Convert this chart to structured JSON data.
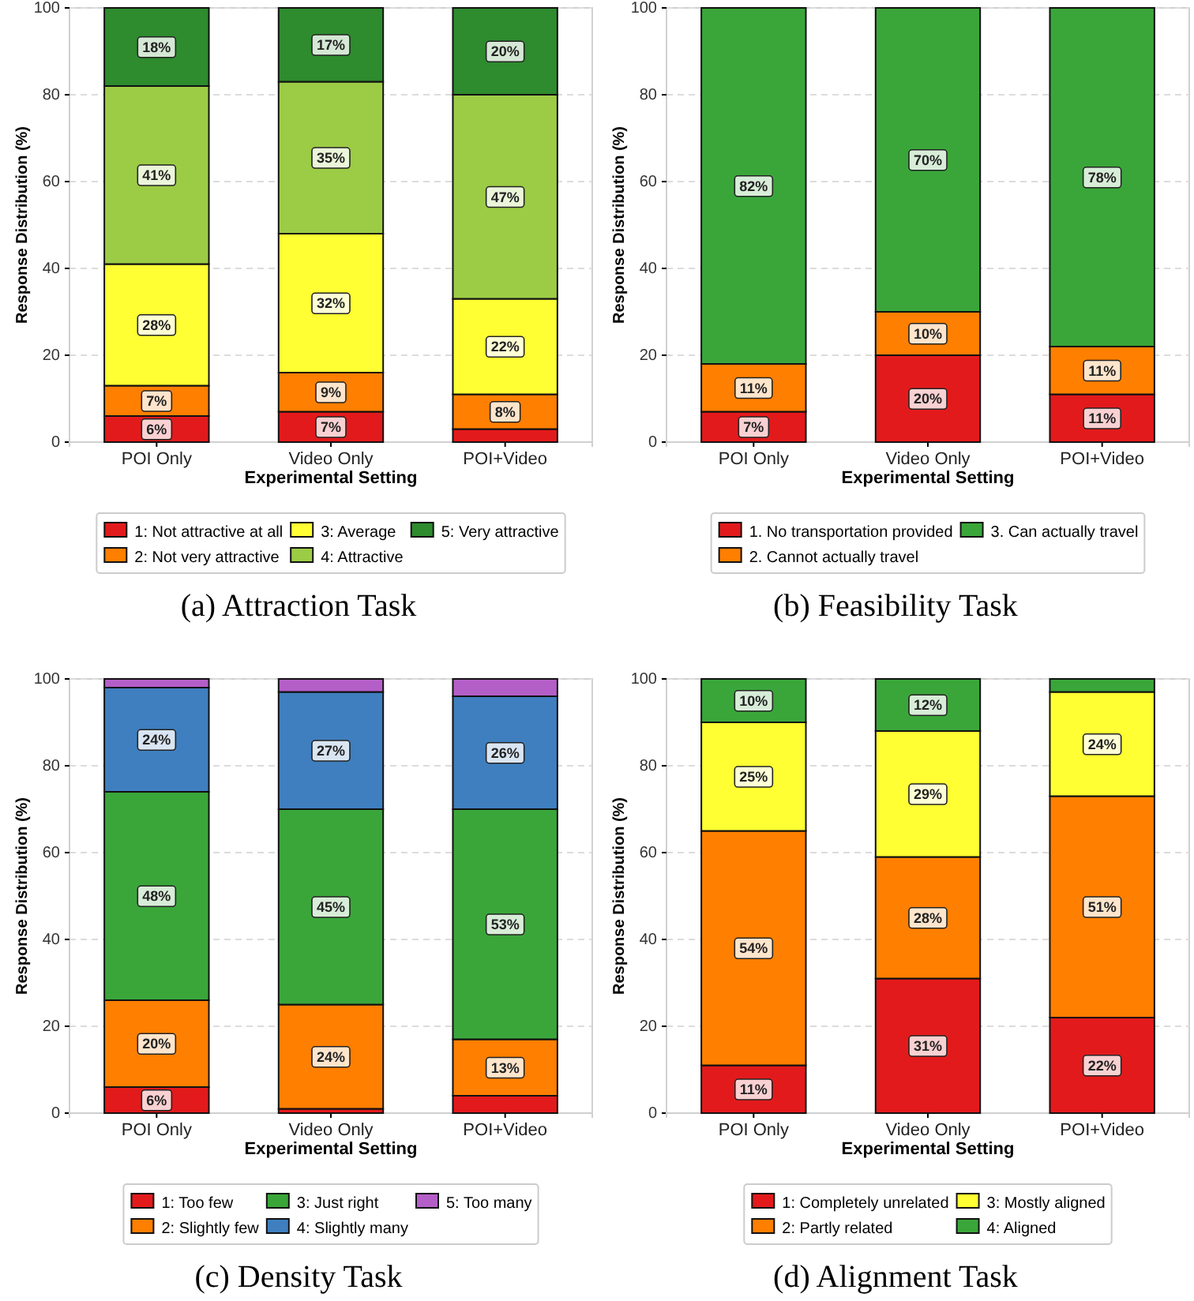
{
  "chart_data": [
    {
      "type": "bar",
      "stacked": true,
      "title": "(a) Attraction Task",
      "xlabel": "Experimental Setting",
      "ylabel": "Response Distribution (%)",
      "categories": [
        "POI Only",
        "Video Only",
        "POI+Video"
      ],
      "ylim": [
        0,
        100
      ],
      "yticks": [
        0,
        20,
        40,
        60,
        80,
        100
      ],
      "grid": "y",
      "legend": "bottom",
      "series": [
        {
          "name": "1: Not attractive at all",
          "color": "#e31a1c",
          "values": [
            6,
            7,
            3
          ],
          "value_labels": [
            "6%",
            "7%",
            null
          ]
        },
        {
          "name": "2: Not very attractive",
          "color": "#ff7f00",
          "values": [
            7,
            9,
            8
          ],
          "value_labels": [
            "7%",
            "9%",
            "8%"
          ]
        },
        {
          "name": "3: Average",
          "color": "#ffff33",
          "values": [
            28,
            32,
            22
          ],
          "value_labels": [
            "28%",
            "32%",
            "22%"
          ]
        },
        {
          "name": "4: Attractive",
          "color": "#9ccc45",
          "values": [
            41,
            35,
            47
          ],
          "value_labels": [
            "41%",
            "35%",
            "47%"
          ]
        },
        {
          "name": "5: Very attractive",
          "color": "#2e8b2e",
          "values": [
            18,
            17,
            20
          ],
          "value_labels": [
            "18%",
            "17%",
            "20%"
          ]
        }
      ]
    },
    {
      "type": "bar",
      "stacked": true,
      "title": "(b) Feasibility Task",
      "xlabel": "Experimental Setting",
      "ylabel": "Response Distribution (%)",
      "categories": [
        "POI Only",
        "Video Only",
        "POI+Video"
      ],
      "ylim": [
        0,
        100
      ],
      "yticks": [
        0,
        20,
        40,
        60,
        80,
        100
      ],
      "grid": "y",
      "legend": "bottom",
      "series": [
        {
          "name": "1. No transportation provided",
          "color": "#e31a1c",
          "values": [
            7,
            20,
            11
          ],
          "value_labels": [
            "7%",
            "20%",
            "11%"
          ]
        },
        {
          "name": "2. Cannot actually travel",
          "color": "#ff7f00",
          "values": [
            11,
            10,
            11
          ],
          "value_labels": [
            "11%",
            "10%",
            "11%"
          ]
        },
        {
          "name": "3. Can actually travel",
          "color": "#3aa63a",
          "values": [
            82,
            70,
            78
          ],
          "value_labels": [
            "82%",
            "70%",
            "78%"
          ]
        }
      ]
    },
    {
      "type": "bar",
      "stacked": true,
      "title": "(c) Density Task",
      "xlabel": "Experimental Setting",
      "ylabel": "Response Distribution (%)",
      "categories": [
        "POI Only",
        "Video Only",
        "POI+Video"
      ],
      "ylim": [
        0,
        100
      ],
      "yticks": [
        0,
        20,
        40,
        60,
        80,
        100
      ],
      "grid": "y",
      "legend": "bottom",
      "series": [
        {
          "name": "1: Too few",
          "color": "#e31a1c",
          "values": [
            6,
            1,
            4
          ],
          "value_labels": [
            "6%",
            null,
            null
          ]
        },
        {
          "name": "2: Slightly few",
          "color": "#ff7f00",
          "values": [
            20,
            24,
            13
          ],
          "value_labels": [
            "20%",
            "24%",
            "13%"
          ]
        },
        {
          "name": "3: Just right",
          "color": "#3aa63a",
          "values": [
            48,
            45,
            53
          ],
          "value_labels": [
            "48%",
            "45%",
            "53%"
          ]
        },
        {
          "name": "4: Slightly many",
          "color": "#3f7fbf",
          "values": [
            24,
            27,
            26
          ],
          "value_labels": [
            "24%",
            "27%",
            "26%"
          ]
        },
        {
          "name": "5: Too many",
          "color": "#b45fc8",
          "values": [
            2,
            3,
            4
          ],
          "value_labels": [
            null,
            null,
            null
          ]
        }
      ]
    },
    {
      "type": "bar",
      "stacked": true,
      "title": "(d) Alignment Task",
      "xlabel": "Experimental Setting",
      "ylabel": "Response Distribution (%)",
      "categories": [
        "POI Only",
        "Video Only",
        "POI+Video"
      ],
      "ylim": [
        0,
        100
      ],
      "yticks": [
        0,
        20,
        40,
        60,
        80,
        100
      ],
      "grid": "y",
      "legend": "bottom",
      "series": [
        {
          "name": "1: Completely unrelated",
          "color": "#e31a1c",
          "values": [
            11,
            31,
            22
          ],
          "value_labels": [
            "11%",
            "31%",
            "22%"
          ]
        },
        {
          "name": "2: Partly related",
          "color": "#ff7f00",
          "values": [
            54,
            28,
            51
          ],
          "value_labels": [
            "54%",
            "28%",
            "51%"
          ]
        },
        {
          "name": "3: Mostly aligned",
          "color": "#ffff33",
          "values": [
            25,
            29,
            24
          ],
          "value_labels": [
            "25%",
            "29%",
            "24%"
          ]
        },
        {
          "name": "4: Aligned",
          "color": "#3aa63a",
          "values": [
            10,
            12,
            3
          ],
          "value_labels": [
            "10%",
            "12%",
            null
          ]
        }
      ]
    }
  ]
}
